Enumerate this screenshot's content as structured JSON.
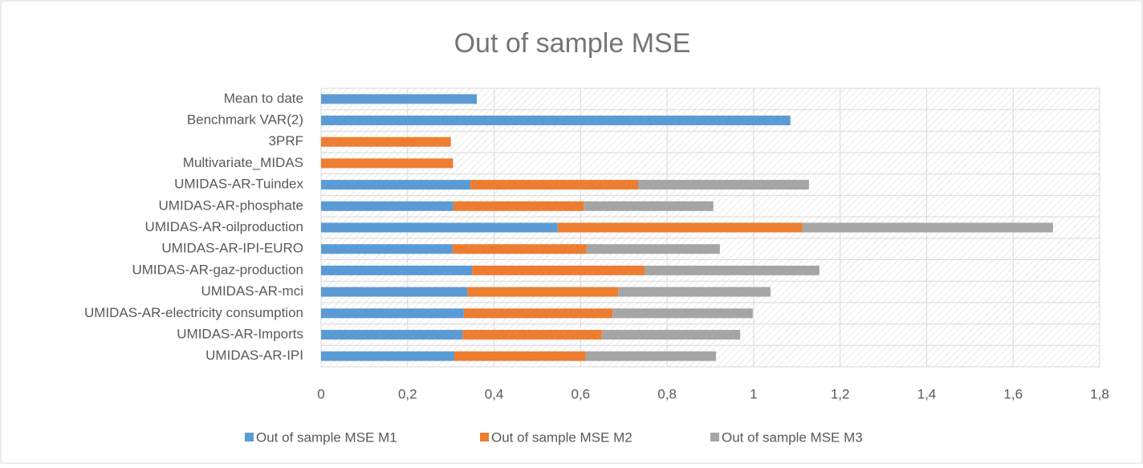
{
  "chart_data": {
    "type": "stacked_barh",
    "title": "Out of sample MSE",
    "categories": [
      "Mean to date",
      "Benchmark VAR(2)",
      "3PRF",
      "Multivariate_MIDAS",
      "UMIDAS-AR-Tuindex",
      "UMIDAS-AR-phosphate",
      "UMIDAS-AR-oilproduction",
      "UMIDAS-AR-IPI-EURO",
      "UMIDAS-AR-gaz-production",
      "UMIDAS-AR-mci",
      "UMIDAS-AR-electricity consumption",
      "UMIDAS-AR-Imports",
      "UMIDAS-AR-IPI"
    ],
    "series": [
      {
        "name": "Out of sample MSE M1",
        "color": "#5b9bd5",
        "values": [
          0.36,
          1.085,
          null,
          null,
          0.345,
          0.306,
          0.547,
          0.304,
          0.349,
          0.338,
          0.33,
          0.327,
          0.308
        ]
      },
      {
        "name": "Out of sample MSE M2",
        "color": "#ed7d31",
        "values": [
          null,
          null,
          0.3,
          0.305,
          0.388,
          0.301,
          0.566,
          0.31,
          0.399,
          0.349,
          0.344,
          0.322,
          0.304
        ]
      },
      {
        "name": "Out of sample MSE M3",
        "color": "#a5a5a5",
        "values": [
          null,
          null,
          null,
          null,
          0.395,
          0.3,
          0.579,
          0.308,
          0.404,
          0.352,
          0.324,
          0.32,
          0.301
        ]
      }
    ],
    "xlim": [
      0,
      1.8
    ],
    "xticks": [
      0,
      {
        "value": 0.2,
        "label": "0,2"
      },
      {
        "value": 0.4,
        "label": "0,4"
      },
      {
        "value": 0.6,
        "label": "0,6"
      },
      {
        "value": 0.8,
        "label": "0,8"
      },
      1,
      {
        "value": 1.2,
        "label": "1,2"
      },
      {
        "value": 1.4,
        "label": "1,4"
      },
      {
        "value": 1.6,
        "label": "1,6"
      },
      {
        "value": 1.8,
        "label": "1,8"
      }
    ],
    "grid": true,
    "legend": "bottom"
  }
}
